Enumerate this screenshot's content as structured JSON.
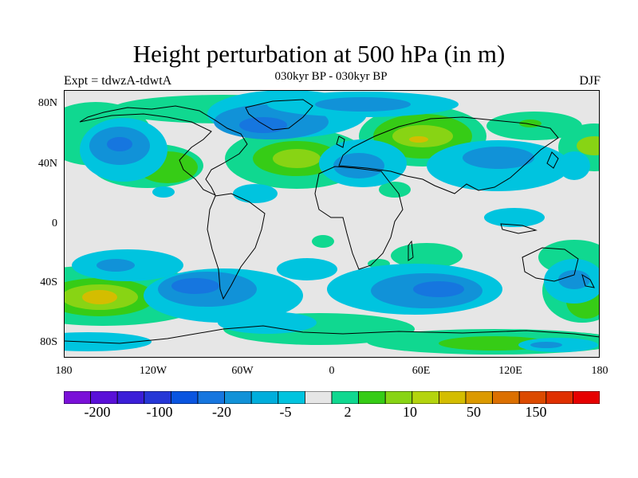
{
  "figure": {
    "title": "Height perturbation at 500 hPa (in m)",
    "left_label": "Expt = tdwzA-tdwtA",
    "center_label": "030kyr BP - 030kyr BP",
    "right_label": "DJF"
  },
  "axes": {
    "lat_ticks": [
      "80N",
      "40N",
      "0",
      "40S",
      "80S"
    ],
    "lon_ticks": [
      "180",
      "120W",
      "60W",
      "0",
      "60E",
      "120E",
      "180"
    ]
  },
  "colorbar": {
    "labels": [
      "-200",
      "-100",
      "-20",
      "-5",
      "2",
      "10",
      "50",
      "150"
    ],
    "colors": [
      "#7a10d8",
      "#5a10d8",
      "#3b1ed8",
      "#2637d6",
      "#0a55e0",
      "#1676df",
      "#1192d8",
      "#00aedc",
      "#00c4df",
      "#e6e6e6",
      "#10d890",
      "#36cc16",
      "#88d414",
      "#b4d40e",
      "#d4bd00",
      "#dc9a00",
      "#dc7000",
      "#dc4a00",
      "#e03000",
      "#e60000"
    ],
    "lowest_color": "#7a10d8",
    "highest_color": "#e60000",
    "background_color": "#e6e6e6"
  }
}
